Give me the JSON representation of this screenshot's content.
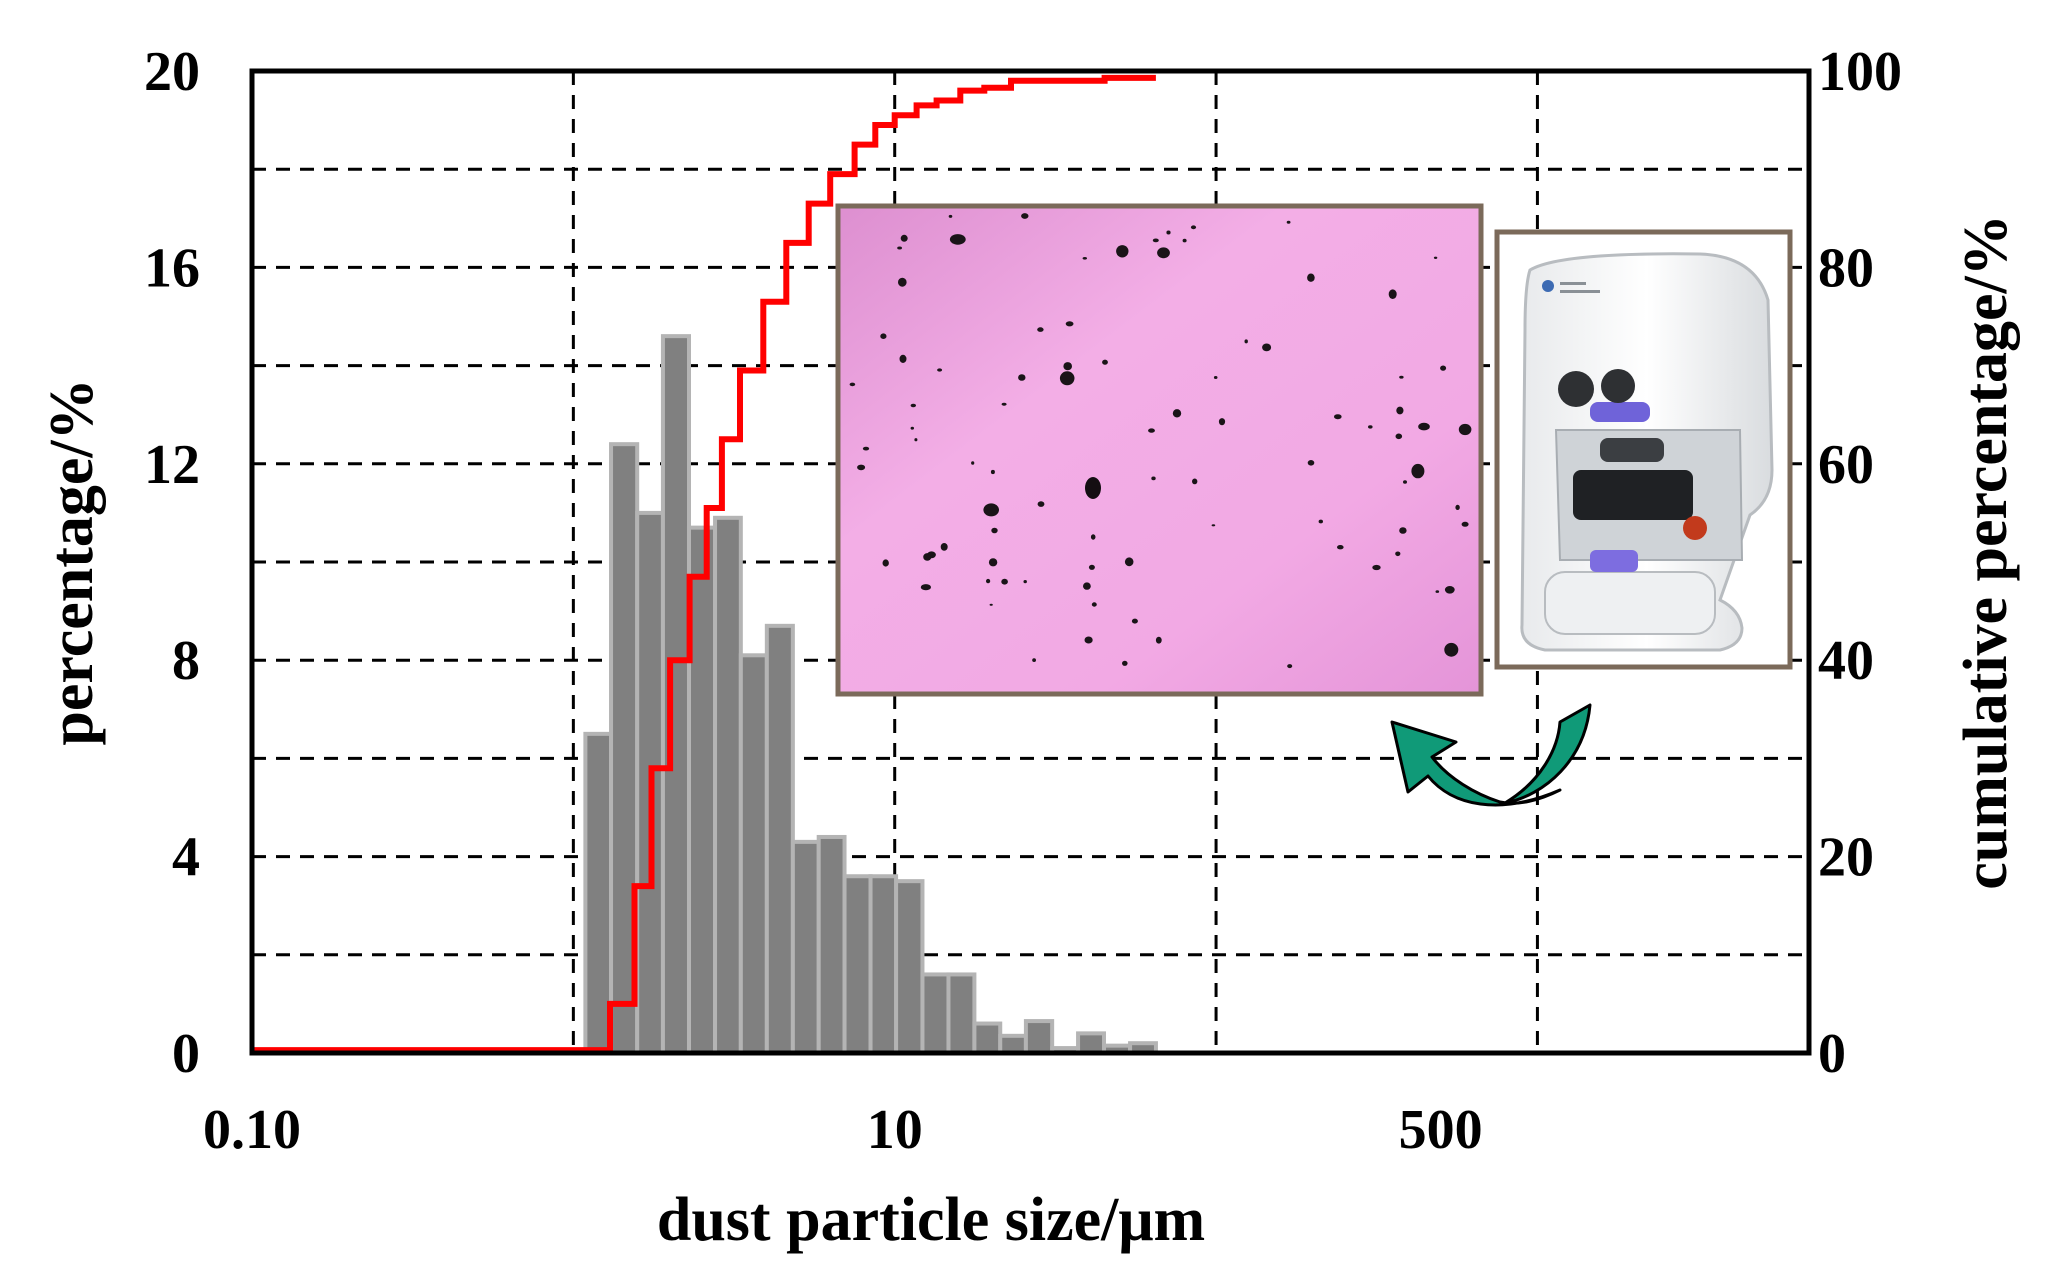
{
  "chart_data": {
    "type": "bar",
    "xlabel": "dust particle size/μm",
    "ylabel": "percentage/%",
    "y2label": "cumulative percentage/%",
    "x_scale": "log",
    "x_ticks": [
      {
        "value": 0.1,
        "label": "0.10"
      },
      {
        "value": 10,
        "label": "10"
      },
      {
        "value": 500,
        "label": "500"
      }
    ],
    "xlim": [
      0.1,
      7000
    ],
    "ylim": [
      0,
      20
    ],
    "y_ticks": [
      0,
      4,
      8,
      12,
      16,
      20
    ],
    "y2lim": [
      0,
      100
    ],
    "y2_ticks": [
      0,
      20,
      40,
      60,
      80,
      100
    ],
    "grid": true,
    "bar_color": "#808080",
    "bar_edge_color": "#b4b4b4",
    "line_color": "#ff0000",
    "inset_frame_color": "#7b6a5a",
    "arrow_color": "#109a78",
    "insets": [
      "micrograph-image",
      "particle-analyzer-instrument-image"
    ],
    "bars": [
      {
        "x0": 1.09,
        "x1": 1.31,
        "value": 6.5
      },
      {
        "x0": 1.31,
        "x1": 1.58,
        "value": 12.4
      },
      {
        "x0": 1.58,
        "x1": 1.9,
        "value": 11.0
      },
      {
        "x0": 1.9,
        "x1": 2.29,
        "value": 14.6
      },
      {
        "x0": 2.29,
        "x1": 2.76,
        "value": 10.7
      },
      {
        "x0": 2.76,
        "x1": 3.32,
        "value": 10.9
      },
      {
        "x0": 3.32,
        "x1": 4.0,
        "value": 8.1
      },
      {
        "x0": 4.0,
        "x1": 4.82,
        "value": 8.7
      },
      {
        "x0": 4.82,
        "x1": 5.8,
        "value": 4.3
      },
      {
        "x0": 5.8,
        "x1": 6.98,
        "value": 4.4
      },
      {
        "x0": 6.98,
        "x1": 8.41,
        "value": 3.6
      },
      {
        "x0": 8.41,
        "x1": 10.1,
        "value": 3.6
      },
      {
        "x0": 10.1,
        "x1": 12.2,
        "value": 3.5
      },
      {
        "x0": 12.2,
        "x1": 14.7,
        "value": 1.6
      },
      {
        "x0": 14.7,
        "x1": 17.7,
        "value": 1.6
      },
      {
        "x0": 17.7,
        "x1": 21.3,
        "value": 0.6
      },
      {
        "x0": 21.3,
        "x1": 25.6,
        "value": 0.35
      },
      {
        "x0": 25.6,
        "x1": 30.9,
        "value": 0.65
      },
      {
        "x0": 30.9,
        "x1": 37.2,
        "value": 0.1
      },
      {
        "x0": 37.2,
        "x1": 44.8,
        "value": 0.4
      },
      {
        "x0": 44.8,
        "x1": 54.0,
        "value": 0.15
      },
      {
        "x0": 54.0,
        "x1": 65.0,
        "value": 0.2
      }
    ],
    "cumulative": {
      "x": [
        0.1,
        0.5,
        1.09,
        1.3,
        1.55,
        1.75,
        2.0,
        2.3,
        2.6,
        2.9,
        3.3,
        3.9,
        4.6,
        5.4,
        6.3,
        7.5,
        8.7,
        10.0,
        11.7,
        13.5,
        16.0,
        19.0,
        23.0,
        28.0,
        35.0,
        45.0,
        55.0,
        65.0
      ],
      "y": [
        0.3,
        0.3,
        0.3,
        5.0,
        17.0,
        29.0,
        40.0,
        48.5,
        55.5,
        62.5,
        69.5,
        76.5,
        82.5,
        86.5,
        89.5,
        92.5,
        94.5,
        95.5,
        96.5,
        97.0,
        98.0,
        98.3,
        99.0,
        99.0,
        99.0,
        99.3,
        99.3,
        99.3
      ]
    }
  }
}
